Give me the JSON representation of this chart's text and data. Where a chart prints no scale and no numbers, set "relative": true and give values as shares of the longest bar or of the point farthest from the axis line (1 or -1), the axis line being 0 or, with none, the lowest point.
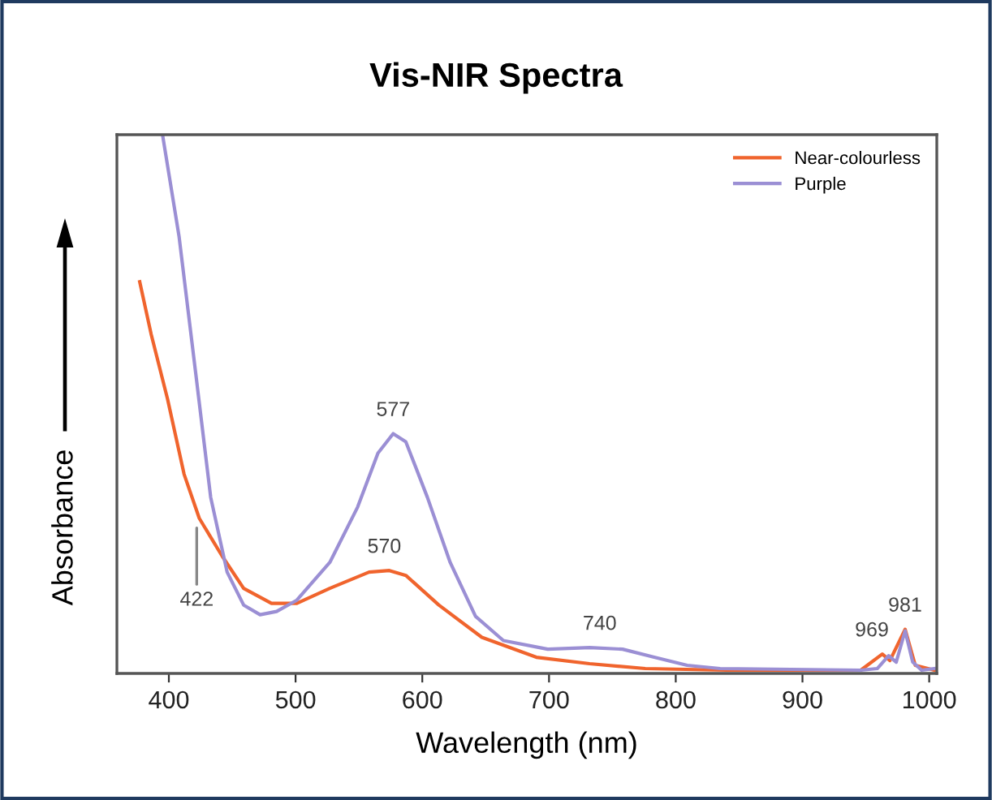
{
  "chart_data": {
    "type": "line",
    "title": "Vis-NIR Spectra",
    "xlabel": "Wavelength (nm)",
    "ylabel": "Absorbance",
    "relative": true,
    "xlim": [
      359,
      1006
    ],
    "xticks": [
      400,
      500,
      600,
      700,
      800,
      900,
      1000
    ],
    "grid": false,
    "legend": "top right",
    "marker": "none",
    "line_style": "solid",
    "series": [
      {
        "name": "Near-colourless",
        "color": "#f0642d",
        "x": [
          377,
          386,
          399,
          412,
          424,
          442,
          459,
          481,
          501,
          527,
          558,
          574,
          587,
          613,
          647,
          690,
          732,
          776,
          840,
          946,
          963,
          969,
          981,
          989,
          1004
        ],
        "values": [
          0.727,
          0.63,
          0.509,
          0.37,
          0.288,
          0.218,
          0.158,
          0.13,
          0.13,
          0.158,
          0.188,
          0.191,
          0.182,
          0.127,
          0.067,
          0.03,
          0.018,
          0.009,
          0.006,
          0.006,
          0.036,
          0.024,
          0.082,
          0.015,
          0.006
        ]
      },
      {
        "name": "Purple",
        "color": "#9b8fd4",
        "x": [
          395,
          408,
          421,
          433,
          446,
          459,
          472,
          485,
          501,
          527,
          549,
          565,
          577,
          587,
          604,
          622,
          642,
          664,
          699,
          732,
          758,
          783,
          809,
          835,
          946,
          959,
          968,
          974,
          981,
          987,
          994,
          1004
        ],
        "values": [
          1.0,
          0.812,
          0.561,
          0.327,
          0.188,
          0.127,
          0.109,
          0.115,
          0.136,
          0.206,
          0.309,
          0.409,
          0.445,
          0.43,
          0.327,
          0.206,
          0.106,
          0.061,
          0.045,
          0.048,
          0.045,
          0.03,
          0.015,
          0.009,
          0.006,
          0.009,
          0.033,
          0.021,
          0.079,
          0.021,
          0.006,
          0.009
        ]
      }
    ],
    "annotations": [
      {
        "text": "422",
        "x": 422,
        "y": 0.29
      },
      {
        "text": "577",
        "x": 577,
        "y": 0.445
      },
      {
        "text": "570",
        "x": 570,
        "y": 0.191
      },
      {
        "text": "740",
        "x": 740,
        "y": 0.048
      },
      {
        "text": "969",
        "x": 969,
        "y": 0.036
      },
      {
        "text": "981",
        "x": 981,
        "y": 0.082
      }
    ]
  }
}
